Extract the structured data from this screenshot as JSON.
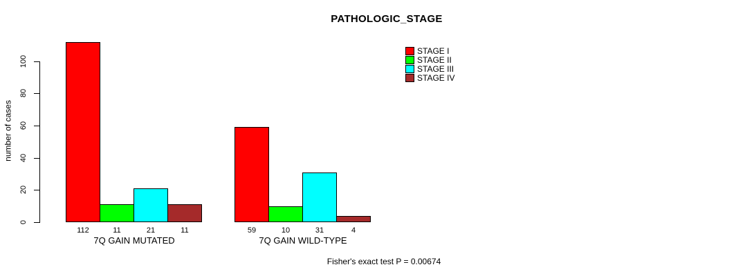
{
  "title": "PATHOLOGIC_STAGE",
  "colors": {
    "background": "#FFFFFF",
    "axis": "#000000",
    "text": "#000000",
    "stage_i": "#FF0000",
    "stage_ii": "#00FF00",
    "stage_iii": "#00FFFF",
    "stage_iv": "#A52A2A"
  },
  "chart_data": {
    "type": "bar",
    "title": "PATHOLOGIC_STAGE",
    "xlabel": "",
    "ylabel": "number of cases",
    "ylim": [
      0,
      100
    ],
    "yticks": [
      0,
      20,
      40,
      60,
      80,
      100
    ],
    "grid": false,
    "legend_position": "top-right",
    "series": [
      {
        "name": "STAGE I",
        "color": "#FF0000"
      },
      {
        "name": "STAGE II",
        "color": "#00FF00"
      },
      {
        "name": "STAGE III",
        "color": "#00FFFF"
      },
      {
        "name": "STAGE IV",
        "color": "#A52A2A"
      }
    ],
    "groups": [
      {
        "label": "7Q GAIN MUTATED",
        "values": [
          112,
          11,
          21,
          11
        ]
      },
      {
        "label": "7Q GAIN WILD-TYPE",
        "values": [
          59,
          10,
          31,
          4
        ]
      }
    ],
    "annotation": "Fisher's exact test P = 0.00674"
  }
}
